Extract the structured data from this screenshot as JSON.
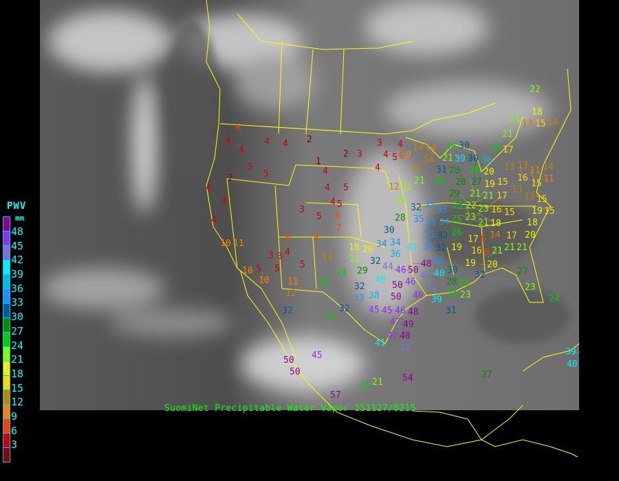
{
  "caption": "SuomiNet Precipitable Water Vapor 151127/0215",
  "legend": {
    "title": "PWV",
    "unit": "mm",
    "tick_labels": [
      "48",
      "45",
      "42",
      "39",
      "36",
      "33",
      "30",
      "27",
      "24",
      "21",
      "18",
      "15",
      "12",
      "9",
      "6",
      "3"
    ],
    "swatch_colors": [
      "#900090",
      "#9030f0",
      "#8070d0",
      "#00f0f0",
      "#00b8e8",
      "#2090ff",
      "#005a96",
      "#008c00",
      "#00d000",
      "#80ff00",
      "#f0f000",
      "#ffd800",
      "#c88000",
      "#ff8000",
      "#ff4000",
      "#d00000",
      "#8b0000"
    ]
  },
  "colors": {
    "boundaries": "#ffff00",
    "background": "#000000"
  },
  "stations": [
    "6",
    "4",
    "4",
    "4",
    "4",
    "2",
    "5",
    "5",
    "2",
    "4",
    "4",
    "4",
    "1",
    "4",
    "4",
    "2",
    "3",
    "3",
    "4",
    "4",
    "5",
    "6",
    "9",
    "4",
    "5",
    "3",
    "5",
    "4",
    "5",
    "6",
    "7",
    "6",
    "8",
    "10",
    "11",
    "3",
    "3",
    "4",
    "5",
    "5",
    "5",
    "14",
    "11",
    "10",
    "10",
    "12",
    "24",
    "25",
    "29",
    "32",
    "25",
    "32",
    "32",
    "33",
    "40",
    "38",
    "41",
    "25",
    "21",
    "50",
    "50",
    "45",
    "57",
    "54",
    "23",
    "32",
    "35",
    "35",
    "28",
    "35",
    "35",
    "34",
    "35",
    "32",
    "34",
    "32",
    "30",
    "34",
    "34",
    "36",
    "41",
    "18",
    "20",
    "21",
    "32",
    "44",
    "46",
    "50",
    "48",
    "44",
    "35",
    "40",
    "46",
    "50",
    "50",
    "45",
    "45",
    "46",
    "47",
    "46",
    "43",
    "30",
    "28",
    "39",
    "31",
    "48",
    "49",
    "48",
    "47",
    "42",
    "24",
    "24",
    "23",
    "32",
    "26",
    "25",
    "19",
    "17",
    "6",
    "16",
    "8",
    "19",
    "20",
    "21",
    "21",
    "21",
    "17",
    "20",
    "18",
    "19",
    "15",
    "27",
    "23",
    "24",
    "27",
    "40",
    "39",
    "14",
    "14",
    "14",
    "14",
    "21",
    "21",
    "12",
    "24",
    "21",
    "30",
    "39",
    "30",
    "26",
    "36",
    "31",
    "26",
    "28",
    "28",
    "27",
    "21",
    "29",
    "25",
    "22",
    "23",
    "23",
    "21",
    "21",
    "16",
    "18",
    "19",
    "14",
    "15",
    "17",
    "20",
    "24",
    "17",
    "21",
    "21",
    "13",
    "15",
    "14",
    "18",
    "22",
    "13",
    "13",
    "16",
    "11",
    "15",
    "11",
    "13",
    "14",
    "15",
    "15",
    "13"
  ]
}
